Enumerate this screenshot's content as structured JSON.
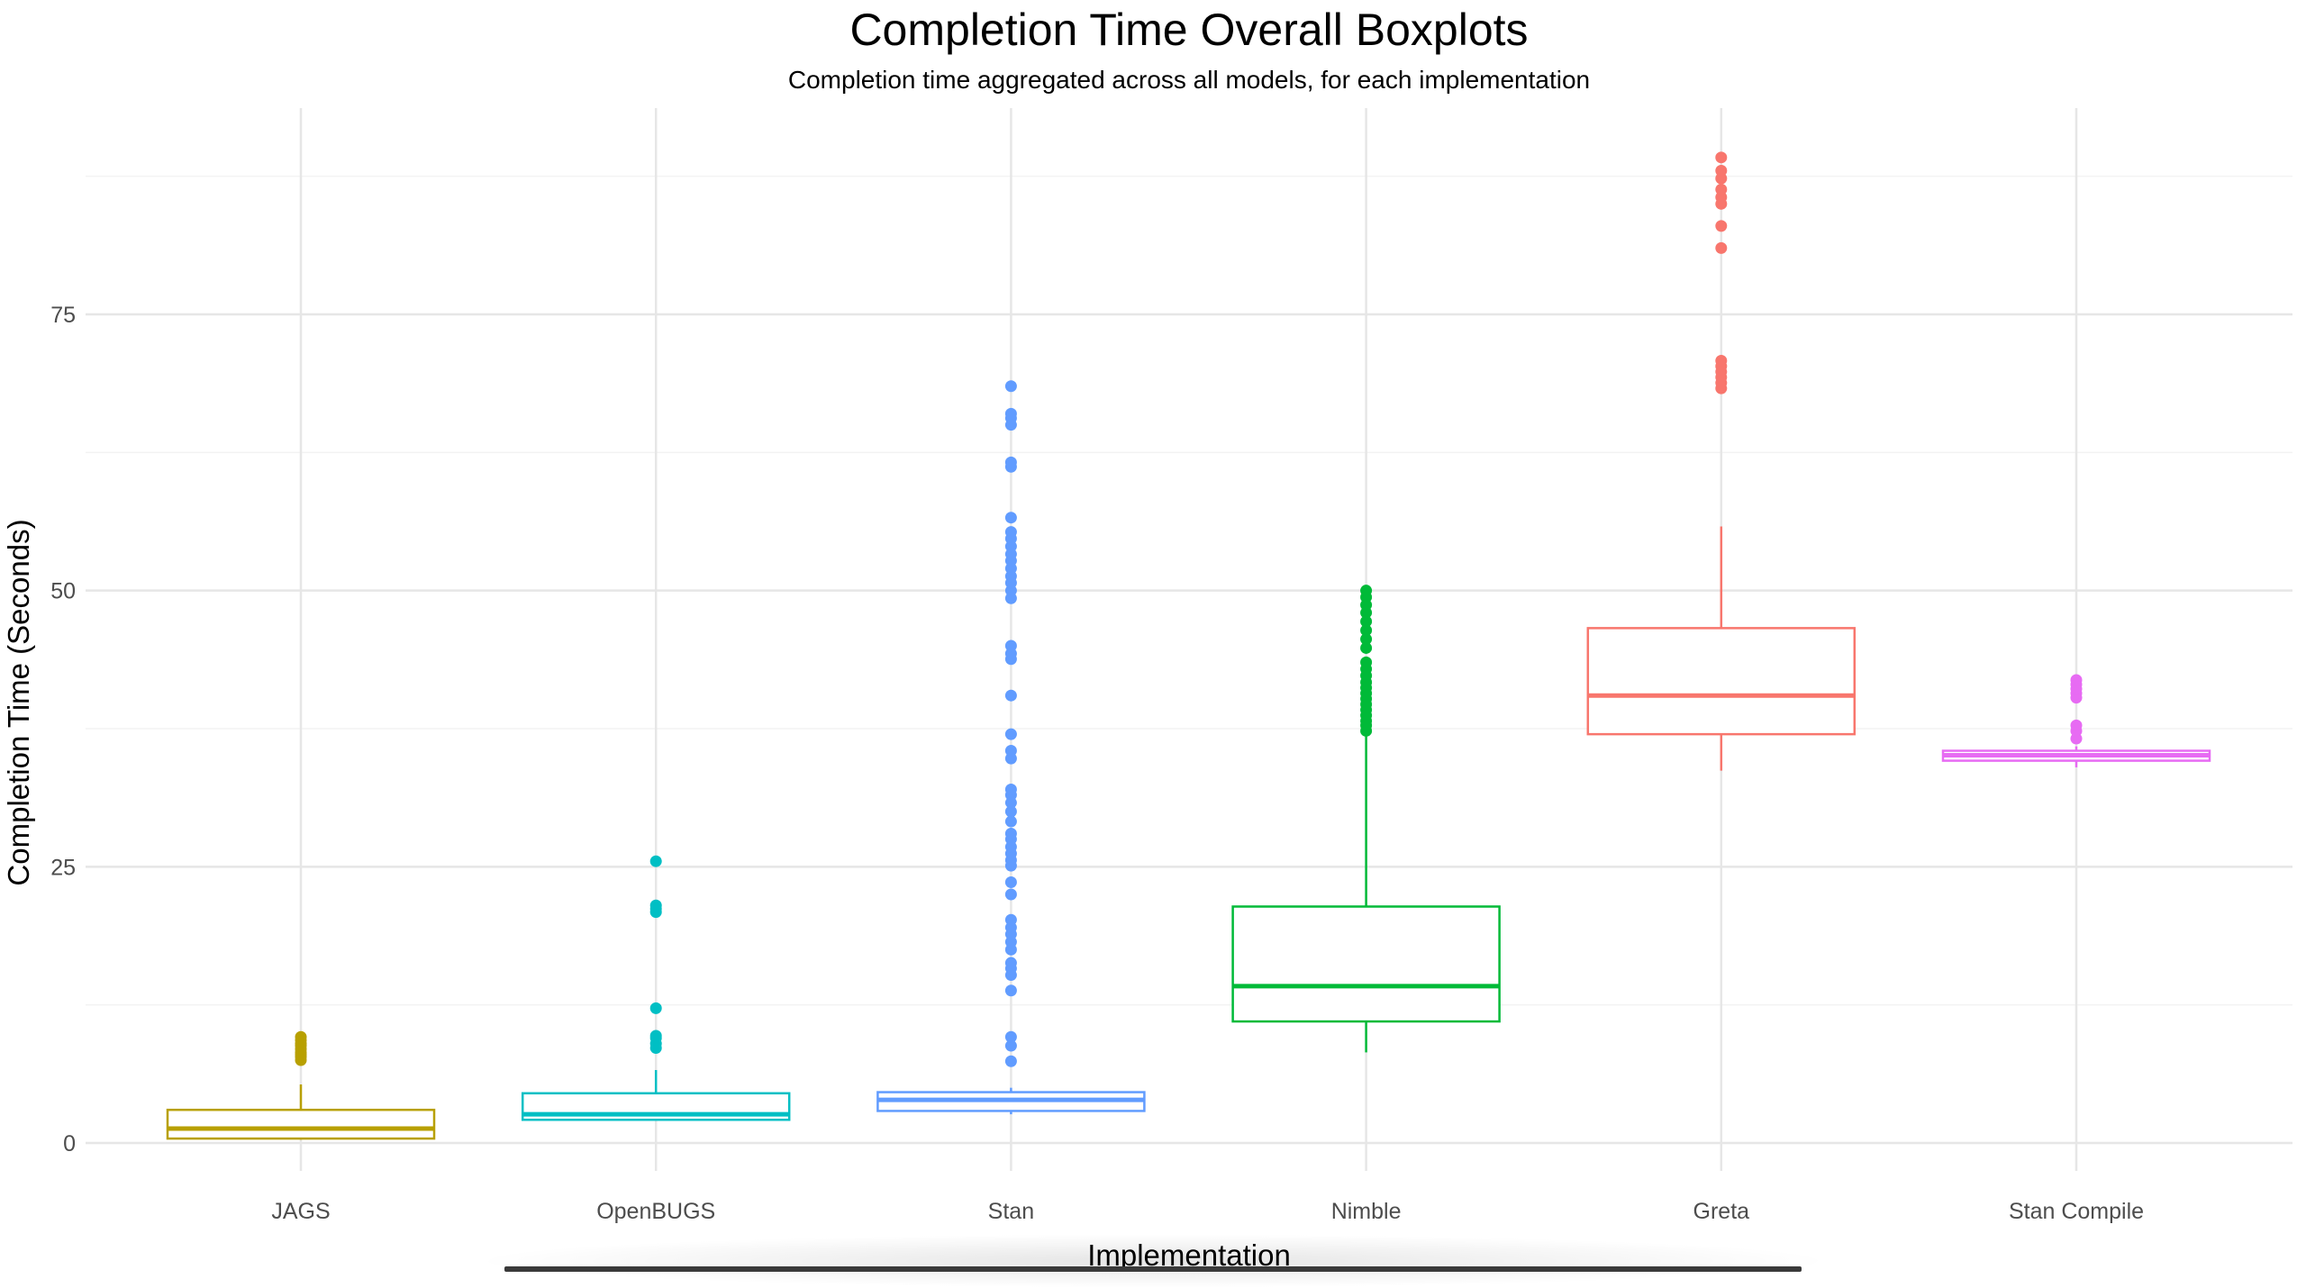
{
  "chart_data": {
    "type": "boxplot",
    "title": "Completion Time Overall Boxplots",
    "subtitle": "Completion time aggregated across all models, for each implementation",
    "xlabel": "Implementation",
    "ylabel": "Completion Time (Seconds)",
    "ylim": [
      -3,
      94
    ],
    "yticks": [
      0,
      25,
      50,
      75
    ],
    "grid": true,
    "legend": "none",
    "categories": [
      "JAGS",
      "OpenBUGS",
      "Stan",
      "Nimble",
      "Greta",
      "Stan Compile"
    ],
    "series": [
      {
        "name": "JAGS",
        "color": "#b8a000",
        "whisker_low": 0.3,
        "q1": 0.4,
        "median": 1.3,
        "q3": 3.0,
        "whisker_high": 5.3,
        "outliers": [
          7.5,
          7.8,
          8.0,
          8.2,
          8.5,
          8.8,
          9.0,
          9.3,
          9.6
        ]
      },
      {
        "name": "OpenBUGS",
        "color": "#00bfc4",
        "whisker_low": 2.0,
        "q1": 2.1,
        "median": 2.6,
        "q3": 4.5,
        "whisker_high": 6.6,
        "outliers": [
          8.6,
          9.0,
          9.5,
          9.7,
          12.2,
          20.9,
          21.2,
          21.5,
          25.5
        ]
      },
      {
        "name": "Stan",
        "color": "#619cff",
        "whisker_low": 2.6,
        "q1": 2.9,
        "median": 3.9,
        "q3": 4.6,
        "whisker_high": 5.0,
        "outliers": [
          7.4,
          8.8,
          9.6,
          13.8,
          15.2,
          15.8,
          16.3,
          17.5,
          18.2,
          18.9,
          19.5,
          20.2,
          22.5,
          23.6,
          25.1,
          25.6,
          26.2,
          26.8,
          27.5,
          28.0,
          29.1,
          30.0,
          30.8,
          31.5,
          32.0,
          34.8,
          35.5,
          37.0,
          40.5,
          43.8,
          44.3,
          45.0,
          49.3,
          50.0,
          50.7,
          51.3,
          52.0,
          52.7,
          53.3,
          54.0,
          54.7,
          55.3,
          56.6,
          61.2,
          61.6,
          65.0,
          65.6,
          66.0,
          68.5
        ]
      },
      {
        "name": "Nimble",
        "color": "#00ba38",
        "whisker_low": 8.2,
        "q1": 11.0,
        "median": 14.2,
        "q3": 21.4,
        "whisker_high": 36.9,
        "outliers": [
          37.3,
          37.8,
          38.2,
          38.7,
          39.2,
          39.7,
          40.2,
          40.7,
          41.2,
          41.7,
          42.3,
          42.9,
          43.5,
          44.8,
          45.6,
          46.4,
          47.2,
          48.0,
          48.7,
          49.4,
          50.0
        ]
      },
      {
        "name": "Greta",
        "color": "#f8766d",
        "whisker_low": 33.7,
        "q1": 37.0,
        "median": 40.5,
        "q3": 46.6,
        "whisker_high": 55.8,
        "outliers": [
          68.3,
          68.8,
          69.3,
          69.8,
          70.3,
          70.8,
          81.0,
          83.0,
          85.0,
          85.6,
          86.3,
          87.3,
          88.0,
          89.2
        ]
      },
      {
        "name": "Stan Compile",
        "color": "#e76bf3",
        "whisker_low": 34.0,
        "q1": 34.6,
        "median": 35.1,
        "q3": 35.5,
        "whisker_high": 35.9,
        "outliers": [
          36.6,
          37.3,
          37.8,
          40.3,
          40.7,
          41.1,
          41.5,
          41.9
        ]
      }
    ]
  }
}
